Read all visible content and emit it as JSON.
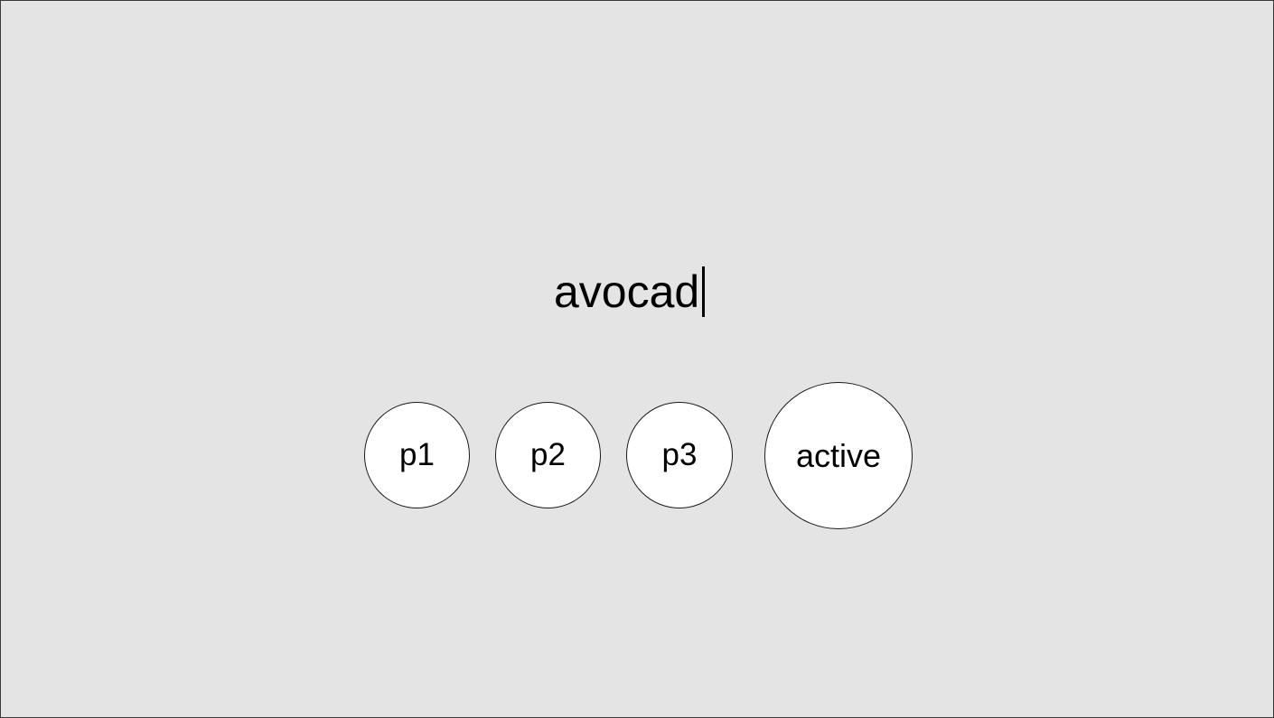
{
  "input": {
    "typed_text": "avocad"
  },
  "players": [
    {
      "label": "p1"
    },
    {
      "label": "p2"
    },
    {
      "label": "p3"
    },
    {
      "label": "active"
    }
  ],
  "colors": {
    "background": "#e4e4e4",
    "circle_fill": "#ffffff",
    "text": "#000000"
  }
}
